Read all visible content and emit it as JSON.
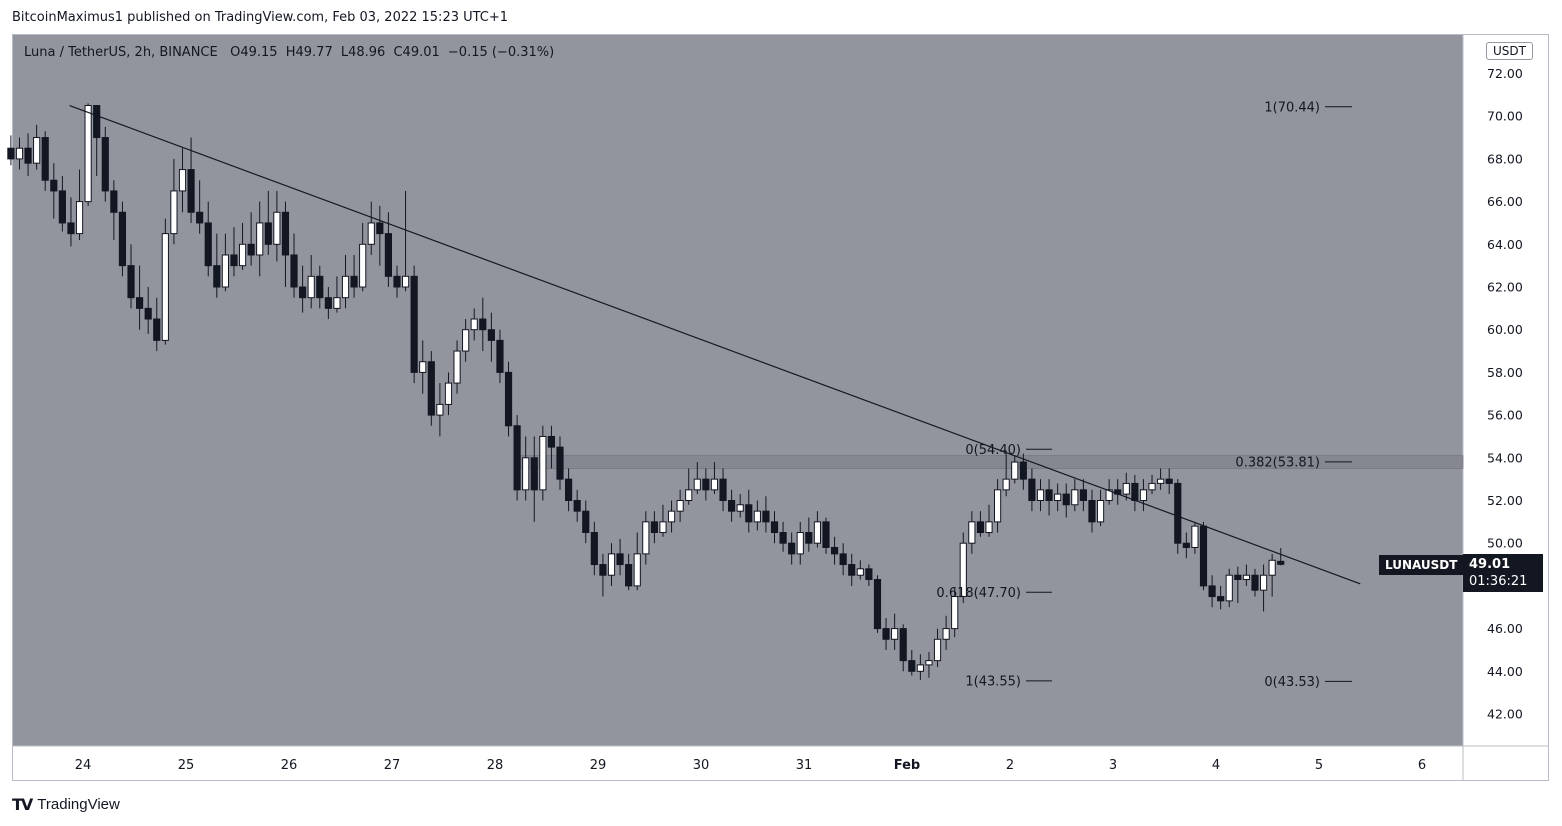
{
  "header": {
    "text": "BitcoinMaximus1 published on TradingView.com, Feb 03, 2022 15:23 UTC+1"
  },
  "legend": {
    "symbol": "Luna / TetherUS, 2h, BINANCE",
    "o_label": "O",
    "o_value": "49.15",
    "h_label": "H",
    "h_value": "49.77",
    "l_label": "L",
    "l_value": "48.96",
    "c_label": "C",
    "c_value": "49.01",
    "change": "−0.15 (−0.31%)"
  },
  "currency": "USDT",
  "last_price": {
    "symbol": "LUNAUSDT",
    "price": "49.01",
    "countdown": "01:36:21"
  },
  "footer": {
    "logo": "TV",
    "brand": "TradingView"
  },
  "colors": {
    "background": "#93959e",
    "up": "#ffffff",
    "down": "#131722",
    "zone": "#7b7e87",
    "line": "#131722"
  },
  "chart_data": {
    "type": "candlestick",
    "ylim": [
      40.5,
      73.2
    ],
    "y_ticks": [
      "42.00",
      "44.00",
      "46.00",
      "48.00",
      "50.00",
      "52.00",
      "54.00",
      "56.00",
      "58.00",
      "60.00",
      "62.00",
      "64.00",
      "66.00",
      "68.00",
      "70.00",
      "72.00"
    ],
    "x_ticks": [
      "24",
      "25",
      "26",
      "27",
      "28",
      "29",
      "30",
      "31",
      "Feb",
      "2",
      "3",
      "4",
      "5",
      "6"
    ],
    "x_tick_days": [
      24,
      25,
      26,
      27,
      28,
      29,
      30,
      31,
      32,
      33,
      34,
      35,
      36,
      37
    ],
    "descending_trendline": {
      "start": {
        "day": 23.87,
        "price": 70.5
      },
      "end": {
        "day": 36.4,
        "price": 48.1
      }
    },
    "resistance_zone": [
      53.5,
      54.1
    ],
    "fib_levels": [
      {
        "label": "1(70.44)",
        "price": 70.44,
        "group": "right"
      },
      {
        "label": "0.382(53.81)",
        "price": 53.81,
        "group": "right"
      },
      {
        "label": "0(43.53)",
        "price": 43.53,
        "group": "right"
      },
      {
        "label": "0(54.40)",
        "price": 54.4,
        "group": "mid"
      },
      {
        "label": "0.618(47.70)",
        "price": 47.7,
        "group": "mid"
      },
      {
        "label": "1(43.55)",
        "price": 43.55,
        "group": "mid"
      }
    ],
    "candles_start_day": 23.3,
    "candle_interval_days": 0.0833,
    "candles": [
      [
        68.5,
        68.0,
        69.1,
        67.7
      ],
      [
        68.0,
        68.5,
        69.0,
        67.5
      ],
      [
        68.5,
        67.8,
        69.2,
        67.2
      ],
      [
        67.8,
        69.0,
        69.6,
        67.5
      ],
      [
        69.0,
        67.0,
        69.3,
        66.5
      ],
      [
        67.0,
        66.5,
        67.8,
        65.2
      ],
      [
        66.5,
        65.0,
        67.2,
        64.6
      ],
      [
        65.0,
        64.5,
        66.2,
        63.9
      ],
      [
        64.5,
        66.0,
        67.5,
        64.2
      ],
      [
        66.0,
        70.5,
        70.6,
        65.8
      ],
      [
        70.5,
        69.0,
        70.2,
        67.2
      ],
      [
        69.0,
        66.5,
        69.5,
        66.0
      ],
      [
        66.5,
        65.5,
        67.0,
        64.2
      ],
      [
        65.5,
        63.0,
        66.0,
        62.5
      ],
      [
        63.0,
        61.5,
        64.0,
        61.0
      ],
      [
        61.5,
        61.0,
        63.0,
        60.0
      ],
      [
        61.0,
        60.5,
        62.0,
        59.8
      ],
      [
        60.5,
        59.5,
        61.5,
        59.0
      ],
      [
        59.5,
        64.5,
        65.2,
        59.3
      ],
      [
        64.5,
        66.5,
        68.0,
        64.0
      ],
      [
        66.5,
        67.5,
        68.5,
        65.5
      ],
      [
        67.5,
        65.5,
        69.0,
        65.0
      ],
      [
        65.5,
        65.0,
        67.0,
        64.5
      ],
      [
        65.0,
        63.0,
        66.0,
        62.5
      ],
      [
        63.0,
        62.0,
        64.5,
        61.5
      ],
      [
        62.0,
        63.5,
        64.5,
        61.8
      ],
      [
        63.5,
        63.0,
        64.8,
        62.5
      ],
      [
        63.0,
        64.0,
        65.0,
        62.8
      ],
      [
        64.0,
        63.5,
        65.5,
        63.0
      ],
      [
        63.5,
        65.0,
        66.0,
        62.5
      ],
      [
        65.0,
        64.0,
        66.5,
        63.5
      ],
      [
        64.0,
        65.5,
        66.5,
        63.2
      ],
      [
        65.5,
        63.5,
        66.0,
        62.0
      ],
      [
        63.5,
        62.0,
        64.5,
        61.5
      ],
      [
        62.0,
        61.5,
        63.0,
        60.8
      ],
      [
        61.5,
        62.5,
        63.5,
        61.0
      ],
      [
        62.5,
        61.5,
        63.0,
        61.0
      ],
      [
        61.5,
        61.0,
        62.0,
        60.5
      ],
      [
        61.0,
        61.5,
        62.5,
        60.8
      ],
      [
        61.5,
        62.5,
        63.5,
        61.0
      ],
      [
        62.5,
        62.0,
        63.5,
        61.5
      ],
      [
        62.0,
        64.0,
        65.0,
        61.8
      ],
      [
        64.0,
        65.0,
        66.0,
        63.5
      ],
      [
        65.0,
        64.5,
        65.8,
        63.0
      ],
      [
        64.5,
        62.5,
        65.5,
        62.0
      ],
      [
        62.5,
        62.0,
        63.0,
        61.5
      ],
      [
        62.0,
        62.5,
        66.5,
        61.8
      ],
      [
        62.5,
        58.0,
        63.0,
        57.5
      ],
      [
        58.0,
        58.5,
        59.5,
        57.0
      ],
      [
        58.5,
        56.0,
        59.0,
        55.5
      ],
      [
        56.0,
        56.5,
        57.5,
        55.0
      ],
      [
        56.5,
        57.5,
        58.0,
        56.0
      ],
      [
        57.5,
        59.0,
        59.5,
        57.0
      ],
      [
        59.0,
        60.0,
        60.5,
        58.5
      ],
      [
        60.0,
        60.5,
        61.0,
        59.5
      ],
      [
        60.5,
        60.0,
        61.5,
        59.0
      ],
      [
        60.0,
        59.5,
        60.8,
        58.5
      ],
      [
        59.5,
        58.0,
        60.0,
        57.5
      ],
      [
        58.0,
        55.5,
        58.5,
        55.0
      ],
      [
        55.5,
        52.5,
        56.0,
        52.0
      ],
      [
        52.5,
        54.0,
        55.0,
        52.0
      ],
      [
        54.0,
        52.5,
        55.0,
        51.0
      ],
      [
        52.5,
        55.0,
        55.5,
        52.0
      ],
      [
        55.0,
        54.5,
        55.5,
        53.5
      ],
      [
        54.5,
        53.0,
        55.0,
        52.5
      ],
      [
        53.0,
        52.0,
        53.5,
        51.5
      ],
      [
        52.0,
        51.5,
        52.5,
        51.0
      ],
      [
        51.5,
        50.5,
        52.0,
        50.0
      ],
      [
        50.5,
        49.0,
        51.0,
        48.5
      ],
      [
        49.0,
        48.5,
        49.5,
        47.5
      ],
      [
        48.5,
        49.5,
        50.0,
        48.0
      ],
      [
        49.5,
        49.0,
        50.2,
        48.5
      ],
      [
        49.0,
        48.0,
        49.5,
        47.8
      ],
      [
        48.0,
        49.5,
        50.5,
        47.8
      ],
      [
        49.5,
        51.0,
        51.5,
        49.0
      ],
      [
        51.0,
        50.5,
        51.5,
        50.0
      ],
      [
        50.5,
        51.0,
        51.8,
        50.3
      ],
      [
        51.0,
        51.5,
        52.0,
        50.5
      ],
      [
        51.5,
        52.0,
        52.5,
        51.0
      ],
      [
        52.0,
        52.5,
        53.5,
        51.8
      ],
      [
        52.5,
        53.0,
        53.8,
        52.3
      ],
      [
        53.0,
        52.5,
        53.5,
        52.0
      ],
      [
        52.5,
        53.0,
        53.8,
        52.3
      ],
      [
        53.0,
        52.0,
        53.5,
        51.5
      ],
      [
        52.0,
        51.5,
        52.5,
        51.0
      ],
      [
        51.5,
        51.8,
        52.3,
        51.2
      ],
      [
        51.8,
        51.0,
        52.5,
        50.5
      ],
      [
        51.0,
        51.5,
        52.0,
        50.6
      ],
      [
        51.5,
        51.0,
        52.2,
        50.5
      ],
      [
        51.0,
        50.5,
        51.5,
        50.0
      ],
      [
        50.5,
        50.0,
        51.0,
        49.6
      ],
      [
        50.0,
        49.5,
        50.5,
        49.0
      ],
      [
        49.5,
        50.5,
        51.0,
        49.0
      ],
      [
        50.5,
        50.0,
        51.2,
        49.6
      ],
      [
        50.0,
        51.0,
        51.5,
        49.8
      ],
      [
        51.0,
        49.8,
        51.2,
        49.5
      ],
      [
        49.8,
        49.5,
        50.3,
        49.0
      ],
      [
        49.5,
        49.0,
        50.0,
        48.5
      ],
      [
        49.0,
        48.5,
        49.5,
        48.0
      ],
      [
        48.5,
        48.8,
        49.2,
        48.3
      ],
      [
        48.8,
        48.3,
        49.0,
        48.0
      ],
      [
        48.3,
        46.0,
        48.5,
        45.8
      ],
      [
        46.0,
        45.5,
        46.5,
        45.0
      ],
      [
        45.5,
        46.0,
        46.7,
        45.0
      ],
      [
        46.0,
        44.5,
        46.2,
        44.0
      ],
      [
        44.5,
        44.0,
        45.0,
        43.8
      ],
      [
        44.0,
        44.3,
        44.8,
        43.6
      ],
      [
        44.3,
        44.5,
        44.9,
        43.7
      ],
      [
        44.5,
        45.5,
        46.0,
        44.2
      ],
      [
        45.5,
        46.0,
        46.6,
        45.0
      ],
      [
        46.0,
        47.5,
        47.9,
        45.6
      ],
      [
        47.5,
        50.0,
        50.5,
        47.2
      ],
      [
        50.0,
        51.0,
        51.5,
        49.5
      ],
      [
        51.0,
        50.5,
        51.5,
        50.3
      ],
      [
        50.5,
        51.0,
        51.8,
        50.3
      ],
      [
        51.0,
        52.5,
        53.0,
        50.5
      ],
      [
        52.5,
        53.0,
        54.2,
        52.2
      ],
      [
        53.0,
        53.8,
        54.1,
        52.8
      ],
      [
        53.8,
        53.0,
        54.2,
        52.5
      ],
      [
        53.0,
        52.0,
        53.5,
        51.5
      ],
      [
        52.0,
        52.5,
        53.0,
        51.5
      ],
      [
        52.5,
        52.0,
        53.0,
        51.3
      ],
      [
        52.0,
        52.3,
        52.8,
        51.5
      ],
      [
        52.3,
        51.8,
        52.8,
        51.2
      ],
      [
        51.8,
        52.5,
        53.0,
        51.5
      ],
      [
        52.5,
        52.0,
        53.0,
        51.5
      ],
      [
        52.0,
        51.0,
        52.5,
        50.5
      ],
      [
        51.0,
        52.0,
        52.5,
        50.8
      ],
      [
        52.0,
        52.5,
        53.0,
        51.8
      ],
      [
        52.5,
        52.3,
        53.0,
        51.8
      ],
      [
        52.3,
        52.8,
        53.3,
        52.0
      ],
      [
        52.8,
        52.0,
        53.2,
        51.5
      ],
      [
        52.0,
        52.5,
        53.0,
        51.5
      ],
      [
        52.5,
        52.8,
        53.2,
        52.3
      ],
      [
        52.8,
        53.0,
        53.5,
        52.5
      ],
      [
        53.0,
        52.8,
        53.5,
        52.3
      ],
      [
        52.8,
        50.0,
        53.0,
        49.5
      ],
      [
        50.0,
        49.8,
        50.5,
        49.3
      ],
      [
        49.8,
        50.8,
        51.0,
        49.5
      ],
      [
        50.8,
        48.0,
        51.0,
        47.8
      ],
      [
        48.0,
        47.5,
        48.5,
        47.0
      ],
      [
        47.5,
        47.3,
        48.0,
        46.9
      ],
      [
        47.3,
        48.5,
        48.8,
        47.0
      ],
      [
        48.5,
        48.3,
        48.9,
        47.2
      ],
      [
        48.3,
        48.5,
        49.0,
        48.0
      ],
      [
        48.5,
        47.8,
        48.8,
        47.5
      ],
      [
        47.8,
        48.5,
        49.0,
        46.8
      ],
      [
        48.5,
        49.2,
        49.5,
        47.5
      ],
      [
        49.15,
        49.01,
        49.77,
        48.96
      ]
    ]
  }
}
